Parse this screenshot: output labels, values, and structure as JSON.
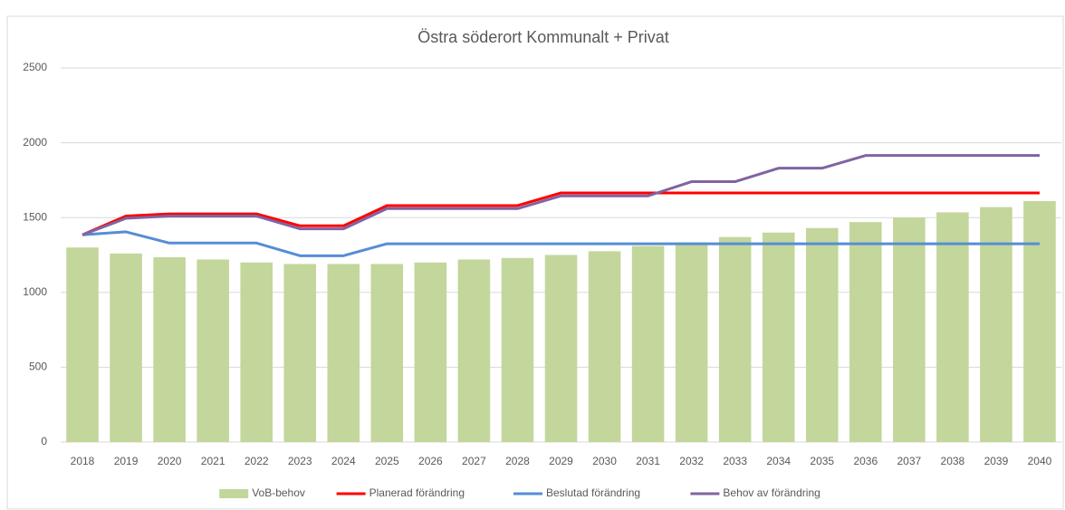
{
  "chart_data": {
    "type": "bar",
    "title": "Östra söderort Kommunalt + Privat",
    "categories": [
      "2018",
      "2019",
      "2020",
      "2021",
      "2022",
      "2023",
      "2024",
      "2025",
      "2026",
      "2027",
      "2028",
      "2029",
      "2030",
      "2031",
      "2032",
      "2033",
      "2034",
      "2035",
      "2036",
      "2037",
      "2038",
      "2039",
      "2040"
    ],
    "series": [
      {
        "name": "VoB-behov",
        "type": "bar",
        "color": "#c3d69b",
        "values": [
          1300,
          1260,
          1235,
          1220,
          1200,
          1190,
          1190,
          1190,
          1200,
          1220,
          1230,
          1250,
          1275,
          1310,
          1335,
          1370,
          1400,
          1430,
          1470,
          1500,
          1535,
          1570,
          1610
        ]
      },
      {
        "name": "Planerad förändring",
        "type": "line",
        "color": "#ff0000",
        "values": [
          1385,
          1510,
          1525,
          1525,
          1525,
          1445,
          1445,
          1580,
          1580,
          1580,
          1580,
          1665,
          1665,
          1665,
          1665,
          1665,
          1665,
          1665,
          1665,
          1665,
          1665,
          1665,
          1665
        ]
      },
      {
        "name": "Beslutad förändring",
        "type": "line",
        "color": "#558ed5",
        "values": [
          1385,
          1405,
          1330,
          1330,
          1330,
          1245,
          1245,
          1325,
          1325,
          1325,
          1325,
          1325,
          1325,
          1325,
          1325,
          1325,
          1325,
          1325,
          1325,
          1325,
          1325,
          1325,
          1325
        ]
      },
      {
        "name": "Behov av förändring",
        "type": "line",
        "color": "#8064a2",
        "values": [
          1385,
          1495,
          1510,
          1510,
          1510,
          1425,
          1425,
          1560,
          1560,
          1560,
          1560,
          1645,
          1645,
          1645,
          1740,
          1740,
          1830,
          1830,
          1915,
          1915,
          1915,
          1915,
          1915
        ]
      }
    ],
    "ylim": [
      0,
      2500
    ],
    "yticks": [
      0,
      500,
      1000,
      1500,
      2000,
      2500
    ],
    "grid": true,
    "legend": "bottom"
  }
}
